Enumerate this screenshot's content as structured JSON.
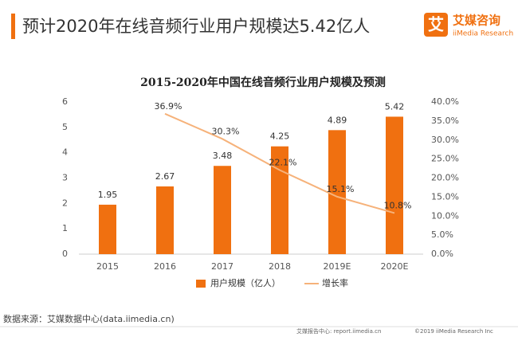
{
  "header": {
    "title": "预计2020年在线音频行业用户规模达5.42亿人",
    "logo_mark": "艾",
    "logo_name": "艾媒咨询",
    "logo_sub": "iiMedia Research"
  },
  "chart_data": {
    "type": "bar-line",
    "title": "2015-2020年中国在线音频行业用户规模及预测",
    "categories": [
      "2015",
      "2016",
      "2017",
      "2018",
      "2019E",
      "2020E"
    ],
    "series": [
      {
        "name": "用户规模（亿人）",
        "type": "bar",
        "color": "#f07010",
        "values": [
          1.95,
          2.67,
          3.48,
          4.25,
          4.89,
          5.42
        ]
      },
      {
        "name": "增长率",
        "type": "line",
        "axis": "y2",
        "color": "#f6b27a",
        "values": [
          null,
          36.9,
          30.3,
          22.1,
          15.1,
          10.8
        ],
        "value_labels": [
          null,
          "36.9%",
          "30.3%",
          "22.1%",
          "15.1%",
          "10.8%"
        ]
      }
    ],
    "ylim": [
      0,
      6
    ],
    "yticks": [
      0,
      1,
      2,
      3,
      4,
      5,
      6
    ],
    "y2lim": [
      0,
      40
    ],
    "y2ticks": [
      {
        "value": 0,
        "label": "0.0%"
      },
      {
        "value": 5,
        "label": "5.0%"
      },
      {
        "value": 10,
        "label": "10.0%"
      },
      {
        "value": 15,
        "label": "15.0%"
      },
      {
        "value": 20,
        "label": "20.0%"
      },
      {
        "value": 25,
        "label": "25.0%"
      },
      {
        "value": 30,
        "label": "30.0%"
      },
      {
        "value": 35,
        "label": "35.0%"
      },
      {
        "value": 40,
        "label": "40.0%"
      }
    ],
    "grid": false,
    "legend": "bottom"
  },
  "source": "数据来源：艾媒数据中心(data.iimedia.cn)",
  "footer": {
    "left": "艾媒报告中心: report.iimedia.cn",
    "right": "©2019  iiMedia Research  Inc"
  }
}
